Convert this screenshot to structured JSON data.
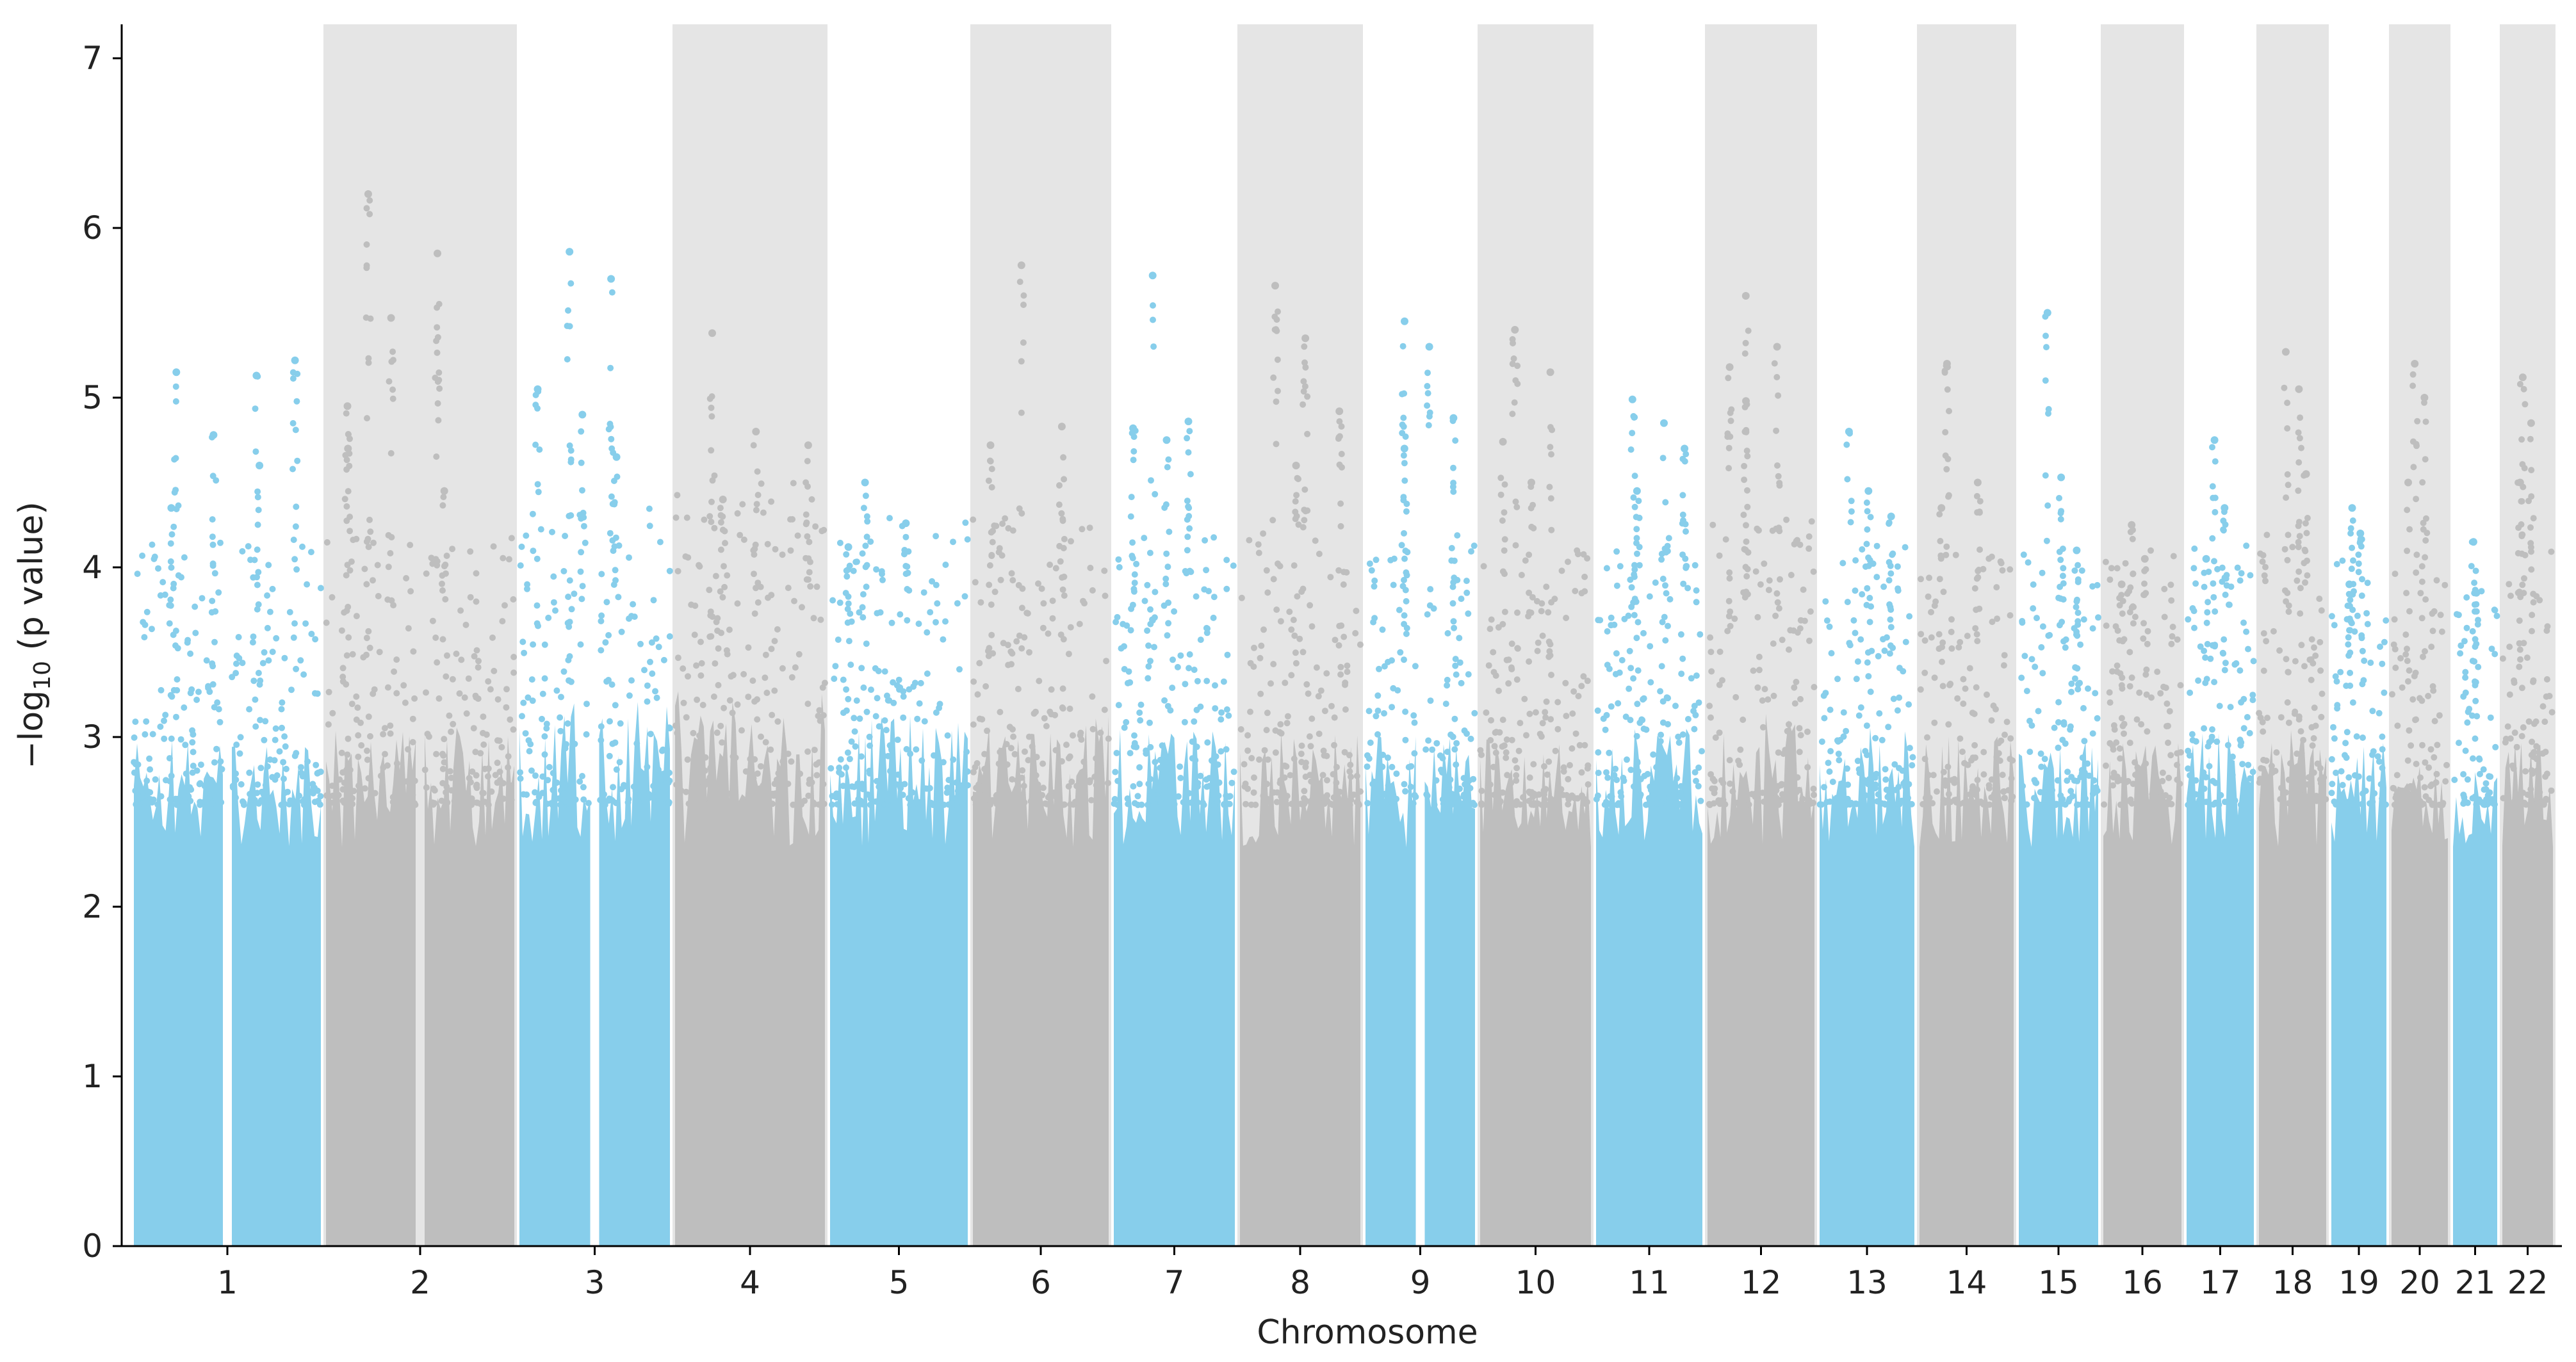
{
  "chart_data": {
    "type": "scatter",
    "subtype": "manhattan",
    "xlabel": "Chromosome",
    "ylabel_parts": [
      "−log",
      "10",
      " (p value)"
    ],
    "ylim": [
      0,
      7.2
    ],
    "yticks": [
      0,
      1,
      2,
      3,
      4,
      5,
      6,
      7
    ],
    "colors": {
      "odd_chromosome": "#87CEEB",
      "even_chromosome": "#BEBEBE",
      "even_band": "#E5E5E5",
      "axis": "#000000"
    },
    "bands_on_even_chromosomes": true,
    "grid": false,
    "chromosomes": [
      {
        "label": "1",
        "segments": 2,
        "baseline_max": 3.25,
        "peaks": [
          5.15,
          5.13,
          5.22,
          4.78,
          4.6,
          4.35
        ]
      },
      {
        "label": "2",
        "segments": 2,
        "baseline_max": 3.3,
        "peaks": [
          6.2,
          5.85,
          4.95,
          5.47,
          4.45,
          4.7
        ]
      },
      {
        "label": "3",
        "segments": 2,
        "baseline_max": 3.5,
        "peaks": [
          5.86,
          5.7,
          5.05,
          4.9,
          4.65
        ]
      },
      {
        "label": "4",
        "segments": 1,
        "baseline_max": 3.6,
        "peaks": [
          5.38,
          4.8,
          4.72,
          4.4
        ]
      },
      {
        "label": "5",
        "segments": 1,
        "baseline_max": 3.4,
        "peaks": [
          4.5,
          4.26,
          4.12
        ]
      },
      {
        "label": "6",
        "segments": 1,
        "baseline_max": 3.4,
        "peaks": [
          5.78,
          4.83,
          4.72
        ]
      },
      {
        "label": "7",
        "segments": 1,
        "baseline_max": 3.3,
        "peaks": [
          5.72,
          4.86,
          4.82,
          4.75
        ]
      },
      {
        "label": "8",
        "segments": 1,
        "baseline_max": 3.3,
        "peaks": [
          5.66,
          5.35,
          4.92,
          4.6
        ]
      },
      {
        "label": "9",
        "segments": 2,
        "baseline_max": 3.3,
        "peaks": [
          5.45,
          5.3,
          4.88,
          4.7
        ]
      },
      {
        "label": "10",
        "segments": 1,
        "baseline_max": 3.2,
        "peaks": [
          5.4,
          5.15,
          4.74,
          4.5
        ]
      },
      {
        "label": "11",
        "segments": 1,
        "baseline_max": 3.3,
        "peaks": [
          4.99,
          4.85,
          4.7,
          4.45
        ]
      },
      {
        "label": "12",
        "segments": 1,
        "baseline_max": 3.4,
        "peaks": [
          5.6,
          5.3,
          5.18,
          4.98
        ]
      },
      {
        "label": "13",
        "segments": 1,
        "baseline_max": 3.3,
        "peaks": [
          4.8,
          4.45,
          4.3
        ]
      },
      {
        "label": "14",
        "segments": 1,
        "baseline_max": 3.3,
        "peaks": [
          5.2,
          4.5,
          4.35
        ]
      },
      {
        "label": "15",
        "segments": 1,
        "baseline_max": 3.2,
        "peaks": [
          5.5,
          4.53,
          4.1
        ]
      },
      {
        "label": "16",
        "segments": 1,
        "baseline_max": 3.2,
        "peaks": [
          4.25,
          4.05,
          3.9
        ]
      },
      {
        "label": "17",
        "segments": 1,
        "baseline_max": 3.3,
        "peaks": [
          4.75,
          4.35,
          4.05
        ]
      },
      {
        "label": "18",
        "segments": 1,
        "baseline_max": 3.3,
        "peaks": [
          5.27,
          5.05,
          4.55
        ]
      },
      {
        "label": "19",
        "segments": 1,
        "baseline_max": 3.2,
        "peaks": [
          4.35,
          4.2,
          3.9
        ]
      },
      {
        "label": "20",
        "segments": 1,
        "baseline_max": 3.1,
        "peaks": [
          5.2,
          5.0,
          4.5
        ]
      },
      {
        "label": "21",
        "segments": 1,
        "baseline_max": 3.0,
        "peaks": [
          4.15,
          3.85
        ]
      },
      {
        "label": "22",
        "segments": 1,
        "baseline_max": 3.2,
        "peaks": [
          5.12,
          4.85,
          4.5
        ]
      }
    ]
  }
}
